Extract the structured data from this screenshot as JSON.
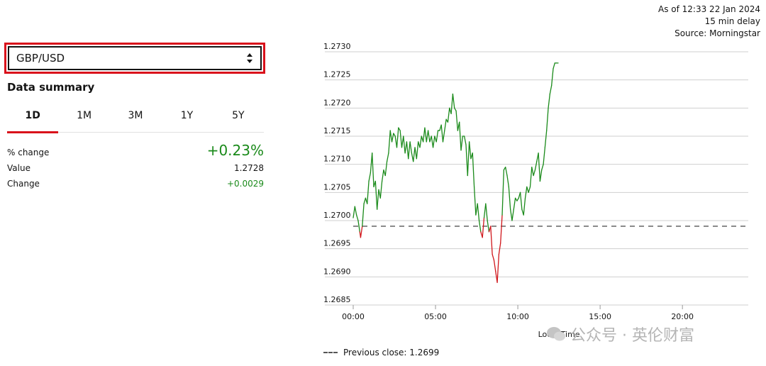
{
  "selector": {
    "value": "GBP/USD"
  },
  "summary": {
    "title": "Data summary",
    "tabs": [
      {
        "label": "1D",
        "active": true
      },
      {
        "label": "1M",
        "active": false
      },
      {
        "label": "3M",
        "active": false
      },
      {
        "label": "1Y",
        "active": false
      },
      {
        "label": "5Y",
        "active": false
      }
    ],
    "pct_change": {
      "label": "% change",
      "value": "+0.23%"
    },
    "value": {
      "label": "Value",
      "value": "1.2728"
    },
    "change": {
      "label": "Change",
      "value": "+0.0029"
    }
  },
  "info": {
    "as_of": "As of 12:33 22 Jan 2024",
    "delay": "15 min delay",
    "source": "Source: Morningstar"
  },
  "colors": {
    "up": "#1a8a1a",
    "down": "#d0161b",
    "accent": "#d9111b",
    "grid": "#cfcfcf"
  },
  "legend": {
    "label": "Previous close: 1.2699"
  },
  "watermark": {
    "text": "公众号 · 英伦财富"
  },
  "chart_data": {
    "type": "line",
    "title": "",
    "xlabel": "Local Time",
    "ylabel": "",
    "x_ticks": [
      "00:00",
      "05:00",
      "10:00",
      "15:00",
      "20:00"
    ],
    "x_tick_hours": [
      0,
      5,
      10,
      15,
      20
    ],
    "xlim_hours": [
      0,
      24
    ],
    "y_ticks": [
      "1.2730",
      "1.2725",
      "1.2720",
      "1.2715",
      "1.2710",
      "1.2705",
      "1.2700",
      "1.2695",
      "1.2690",
      "1.2685"
    ],
    "ylim": [
      1.2685,
      1.273
    ],
    "reference_line": {
      "name": "Previous close",
      "value": 1.2699
    },
    "series": [
      {
        "points": [
          [
            0.0,
            1.27005
          ],
          [
            0.1,
            1.27025
          ],
          [
            0.2,
            1.2701
          ],
          [
            0.3,
            1.27
          ],
          [
            0.4,
            1.2698
          ],
          [
            0.45,
            1.2697
          ],
          [
            0.55,
            1.2699
          ],
          [
            0.65,
            1.2703
          ],
          [
            0.75,
            1.2704
          ],
          [
            0.85,
            1.2703
          ],
          [
            0.95,
            1.2707
          ],
          [
            1.05,
            1.27085
          ],
          [
            1.15,
            1.2712
          ],
          [
            1.25,
            1.2706
          ],
          [
            1.35,
            1.2707
          ],
          [
            1.45,
            1.2702
          ],
          [
            1.55,
            1.27055
          ],
          [
            1.65,
            1.2704
          ],
          [
            1.75,
            1.2707
          ],
          [
            1.85,
            1.2709
          ],
          [
            1.95,
            1.2708
          ],
          [
            2.05,
            1.27105
          ],
          [
            2.15,
            1.2712
          ],
          [
            2.25,
            1.2716
          ],
          [
            2.35,
            1.2714
          ],
          [
            2.45,
            1.27155
          ],
          [
            2.55,
            1.2715
          ],
          [
            2.65,
            1.2713
          ],
          [
            2.75,
            1.27165
          ],
          [
            2.85,
            1.2716
          ],
          [
            2.95,
            1.2713
          ],
          [
            3.05,
            1.2715
          ],
          [
            3.15,
            1.2712
          ],
          [
            3.25,
            1.2714
          ],
          [
            3.35,
            1.2711
          ],
          [
            3.45,
            1.2714
          ],
          [
            3.55,
            1.2712
          ],
          [
            3.65,
            1.27105
          ],
          [
            3.75,
            1.2713
          ],
          [
            3.85,
            1.2711
          ],
          [
            3.95,
            1.2714
          ],
          [
            4.05,
            1.2713
          ],
          [
            4.15,
            1.2715
          ],
          [
            4.25,
            1.2714
          ],
          [
            4.35,
            1.27165
          ],
          [
            4.45,
            1.2714
          ],
          [
            4.55,
            1.2716
          ],
          [
            4.65,
            1.2714
          ],
          [
            4.75,
            1.2715
          ],
          [
            4.85,
            1.2713
          ],
          [
            4.95,
            1.2715
          ],
          [
            5.05,
            1.2714
          ],
          [
            5.15,
            1.2716
          ],
          [
            5.25,
            1.2716
          ],
          [
            5.35,
            1.2717
          ],
          [
            5.45,
            1.2714
          ],
          [
            5.55,
            1.2716
          ],
          [
            5.65,
            1.2718
          ],
          [
            5.75,
            1.27175
          ],
          [
            5.85,
            1.272
          ],
          [
            5.95,
            1.2719
          ],
          [
            6.05,
            1.27225
          ],
          [
            6.15,
            1.272
          ],
          [
            6.25,
            1.27195
          ],
          [
            6.35,
            1.2716
          ],
          [
            6.45,
            1.27175
          ],
          [
            6.55,
            1.27125
          ],
          [
            6.65,
            1.2715
          ],
          [
            6.75,
            1.2715
          ],
          [
            6.85,
            1.27135
          ],
          [
            6.95,
            1.2708
          ],
          [
            7.05,
            1.2714
          ],
          [
            7.15,
            1.2711
          ],
          [
            7.25,
            1.2712
          ],
          [
            7.35,
            1.2706
          ],
          [
            7.45,
            1.2701
          ],
          [
            7.55,
            1.2703
          ],
          [
            7.65,
            1.27
          ],
          [
            7.75,
            1.2698
          ],
          [
            7.85,
            1.2697
          ],
          [
            7.95,
            1.27005
          ],
          [
            8.05,
            1.2703
          ],
          [
            8.15,
            1.27
          ],
          [
            8.25,
            1.2698
          ],
          [
            8.35,
            1.2699
          ],
          [
            8.45,
            1.2694
          ],
          [
            8.55,
            1.2693
          ],
          [
            8.65,
            1.2691
          ],
          [
            8.75,
            1.2689
          ],
          [
            8.85,
            1.2694
          ],
          [
            8.95,
            1.2696
          ],
          [
            9.05,
            1.2701
          ],
          [
            9.15,
            1.2709
          ],
          [
            9.25,
            1.27095
          ],
          [
            9.35,
            1.2708
          ],
          [
            9.45,
            1.2706
          ],
          [
            9.55,
            1.2702
          ],
          [
            9.65,
            1.27
          ],
          [
            9.75,
            1.2702
          ],
          [
            9.85,
            1.2704
          ],
          [
            9.95,
            1.27035
          ],
          [
            10.05,
            1.2704
          ],
          [
            10.15,
            1.2705
          ],
          [
            10.25,
            1.2702
          ],
          [
            10.35,
            1.2701
          ],
          [
            10.45,
            1.2704
          ],
          [
            10.55,
            1.2706
          ],
          [
            10.65,
            1.2705
          ],
          [
            10.75,
            1.2706
          ],
          [
            10.85,
            1.27095
          ],
          [
            10.95,
            1.2708
          ],
          [
            11.05,
            1.2709
          ],
          [
            11.15,
            1.27105
          ],
          [
            11.25,
            1.2712
          ],
          [
            11.35,
            1.2707
          ],
          [
            11.45,
            1.2709
          ],
          [
            11.55,
            1.271
          ],
          [
            11.65,
            1.2713
          ],
          [
            11.75,
            1.2716
          ],
          [
            11.85,
            1.272
          ],
          [
            11.95,
            1.27225
          ],
          [
            12.05,
            1.2724
          ],
          [
            12.15,
            1.2727
          ],
          [
            12.25,
            1.2728
          ],
          [
            12.35,
            1.2728
          ],
          [
            12.45,
            1.2728
          ]
        ]
      }
    ]
  }
}
